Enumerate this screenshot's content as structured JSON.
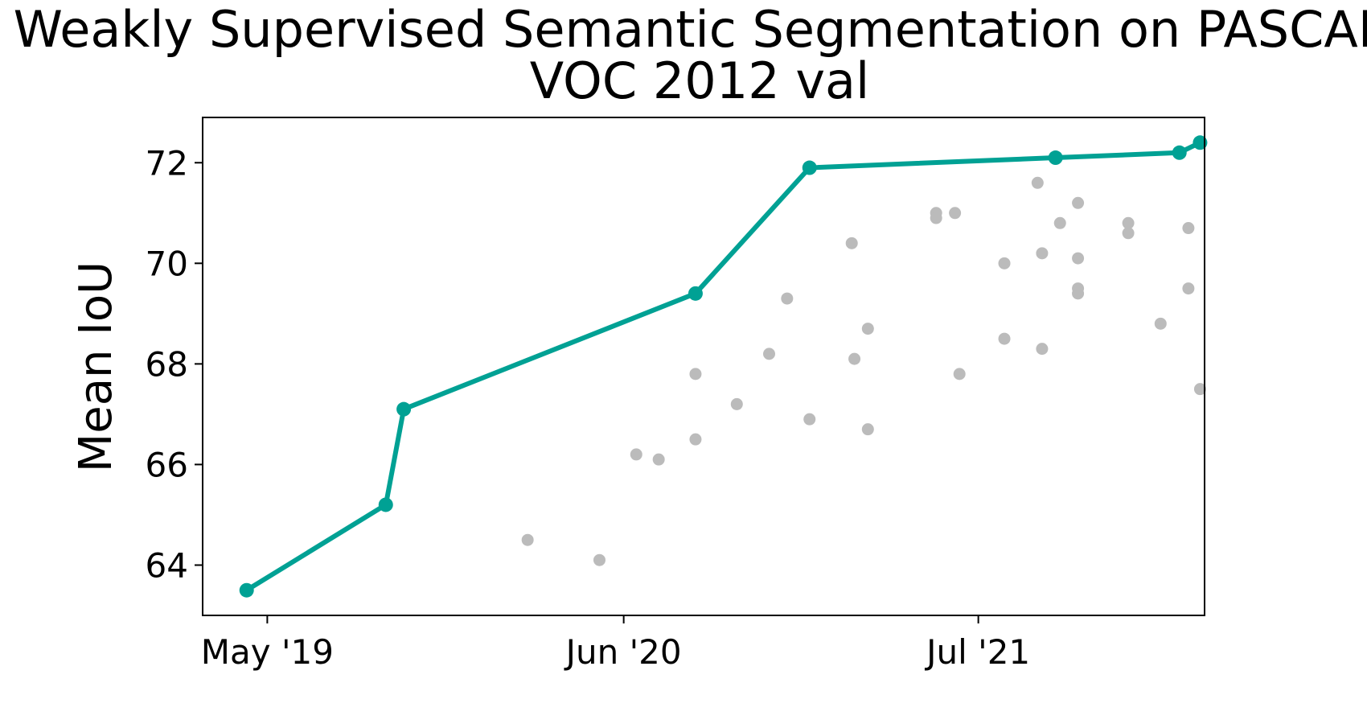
{
  "chart_data": {
    "type": "scatter",
    "title_line1": "Weakly Supervised Semantic Segmentation on PASCAL",
    "title_line2": "VOC 2012 val",
    "xlabel": "",
    "ylabel": "Mean IoU",
    "ylim": [
      63.0,
      72.9
    ],
    "xlim": [
      "2019-02-18",
      "2022-03-10"
    ],
    "x_ticks": [
      {
        "date": "2019-05-01",
        "label": "May '19"
      },
      {
        "date": "2020-06-01",
        "label": "Jun '20"
      },
      {
        "date": "2021-07-01",
        "label": "Jul '21"
      }
    ],
    "y_ticks": [
      64,
      66,
      68,
      70,
      72
    ],
    "grid": false,
    "legend": "none",
    "colors": {
      "sota_line": "#00A194",
      "other_points": "#BBBBBB"
    },
    "series": [
      {
        "role": "sota",
        "points": [
          {
            "x": "2019-04-08",
            "y": 63.5
          },
          {
            "x": "2019-09-10",
            "y": 65.2
          },
          {
            "x": "2019-09-30",
            "y": 67.1
          },
          {
            "x": "2020-08-20",
            "y": 69.4
          },
          {
            "x": "2020-12-25",
            "y": 71.9
          },
          {
            "x": "2021-09-25",
            "y": 72.1
          },
          {
            "x": "2022-02-10",
            "y": 72.2
          },
          {
            "x": "2022-03-05",
            "y": 72.4
          }
        ]
      },
      {
        "role": "others",
        "points": [
          {
            "x": "2020-02-15",
            "y": 64.5
          },
          {
            "x": "2020-05-05",
            "y": 64.1
          },
          {
            "x": "2020-06-15",
            "y": 66.2
          },
          {
            "x": "2020-07-10",
            "y": 66.1
          },
          {
            "x": "2020-08-20",
            "y": 67.8
          },
          {
            "x": "2020-08-20",
            "y": 66.5
          },
          {
            "x": "2020-10-05",
            "y": 67.2
          },
          {
            "x": "2020-11-10",
            "y": 68.2
          },
          {
            "x": "2020-11-30",
            "y": 69.3
          },
          {
            "x": "2020-12-25",
            "y": 66.9
          },
          {
            "x": "2021-02-10",
            "y": 70.4
          },
          {
            "x": "2021-02-13",
            "y": 68.1
          },
          {
            "x": "2021-02-28",
            "y": 68.7
          },
          {
            "x": "2021-02-28",
            "y": 66.7
          },
          {
            "x": "2021-05-15",
            "y": 71.0
          },
          {
            "x": "2021-05-15",
            "y": 70.9
          },
          {
            "x": "2021-06-05",
            "y": 71.0
          },
          {
            "x": "2021-06-10",
            "y": 67.8
          },
          {
            "x": "2021-07-30",
            "y": 70.0
          },
          {
            "x": "2021-07-30",
            "y": 68.5
          },
          {
            "x": "2021-09-10",
            "y": 70.2
          },
          {
            "x": "2021-09-10",
            "y": 68.3
          },
          {
            "x": "2021-09-05",
            "y": 71.6
          },
          {
            "x": "2021-09-30",
            "y": 70.8
          },
          {
            "x": "2021-10-20",
            "y": 71.2
          },
          {
            "x": "2021-10-20",
            "y": 70.1
          },
          {
            "x": "2021-10-20",
            "y": 69.5
          },
          {
            "x": "2021-10-20",
            "y": 69.4
          },
          {
            "x": "2021-12-15",
            "y": 70.8
          },
          {
            "x": "2021-12-15",
            "y": 70.6
          },
          {
            "x": "2022-01-20",
            "y": 68.8
          },
          {
            "x": "2022-02-20",
            "y": 70.7
          },
          {
            "x": "2022-02-20",
            "y": 69.5
          },
          {
            "x": "2022-03-05",
            "y": 67.5
          }
        ]
      }
    ]
  }
}
